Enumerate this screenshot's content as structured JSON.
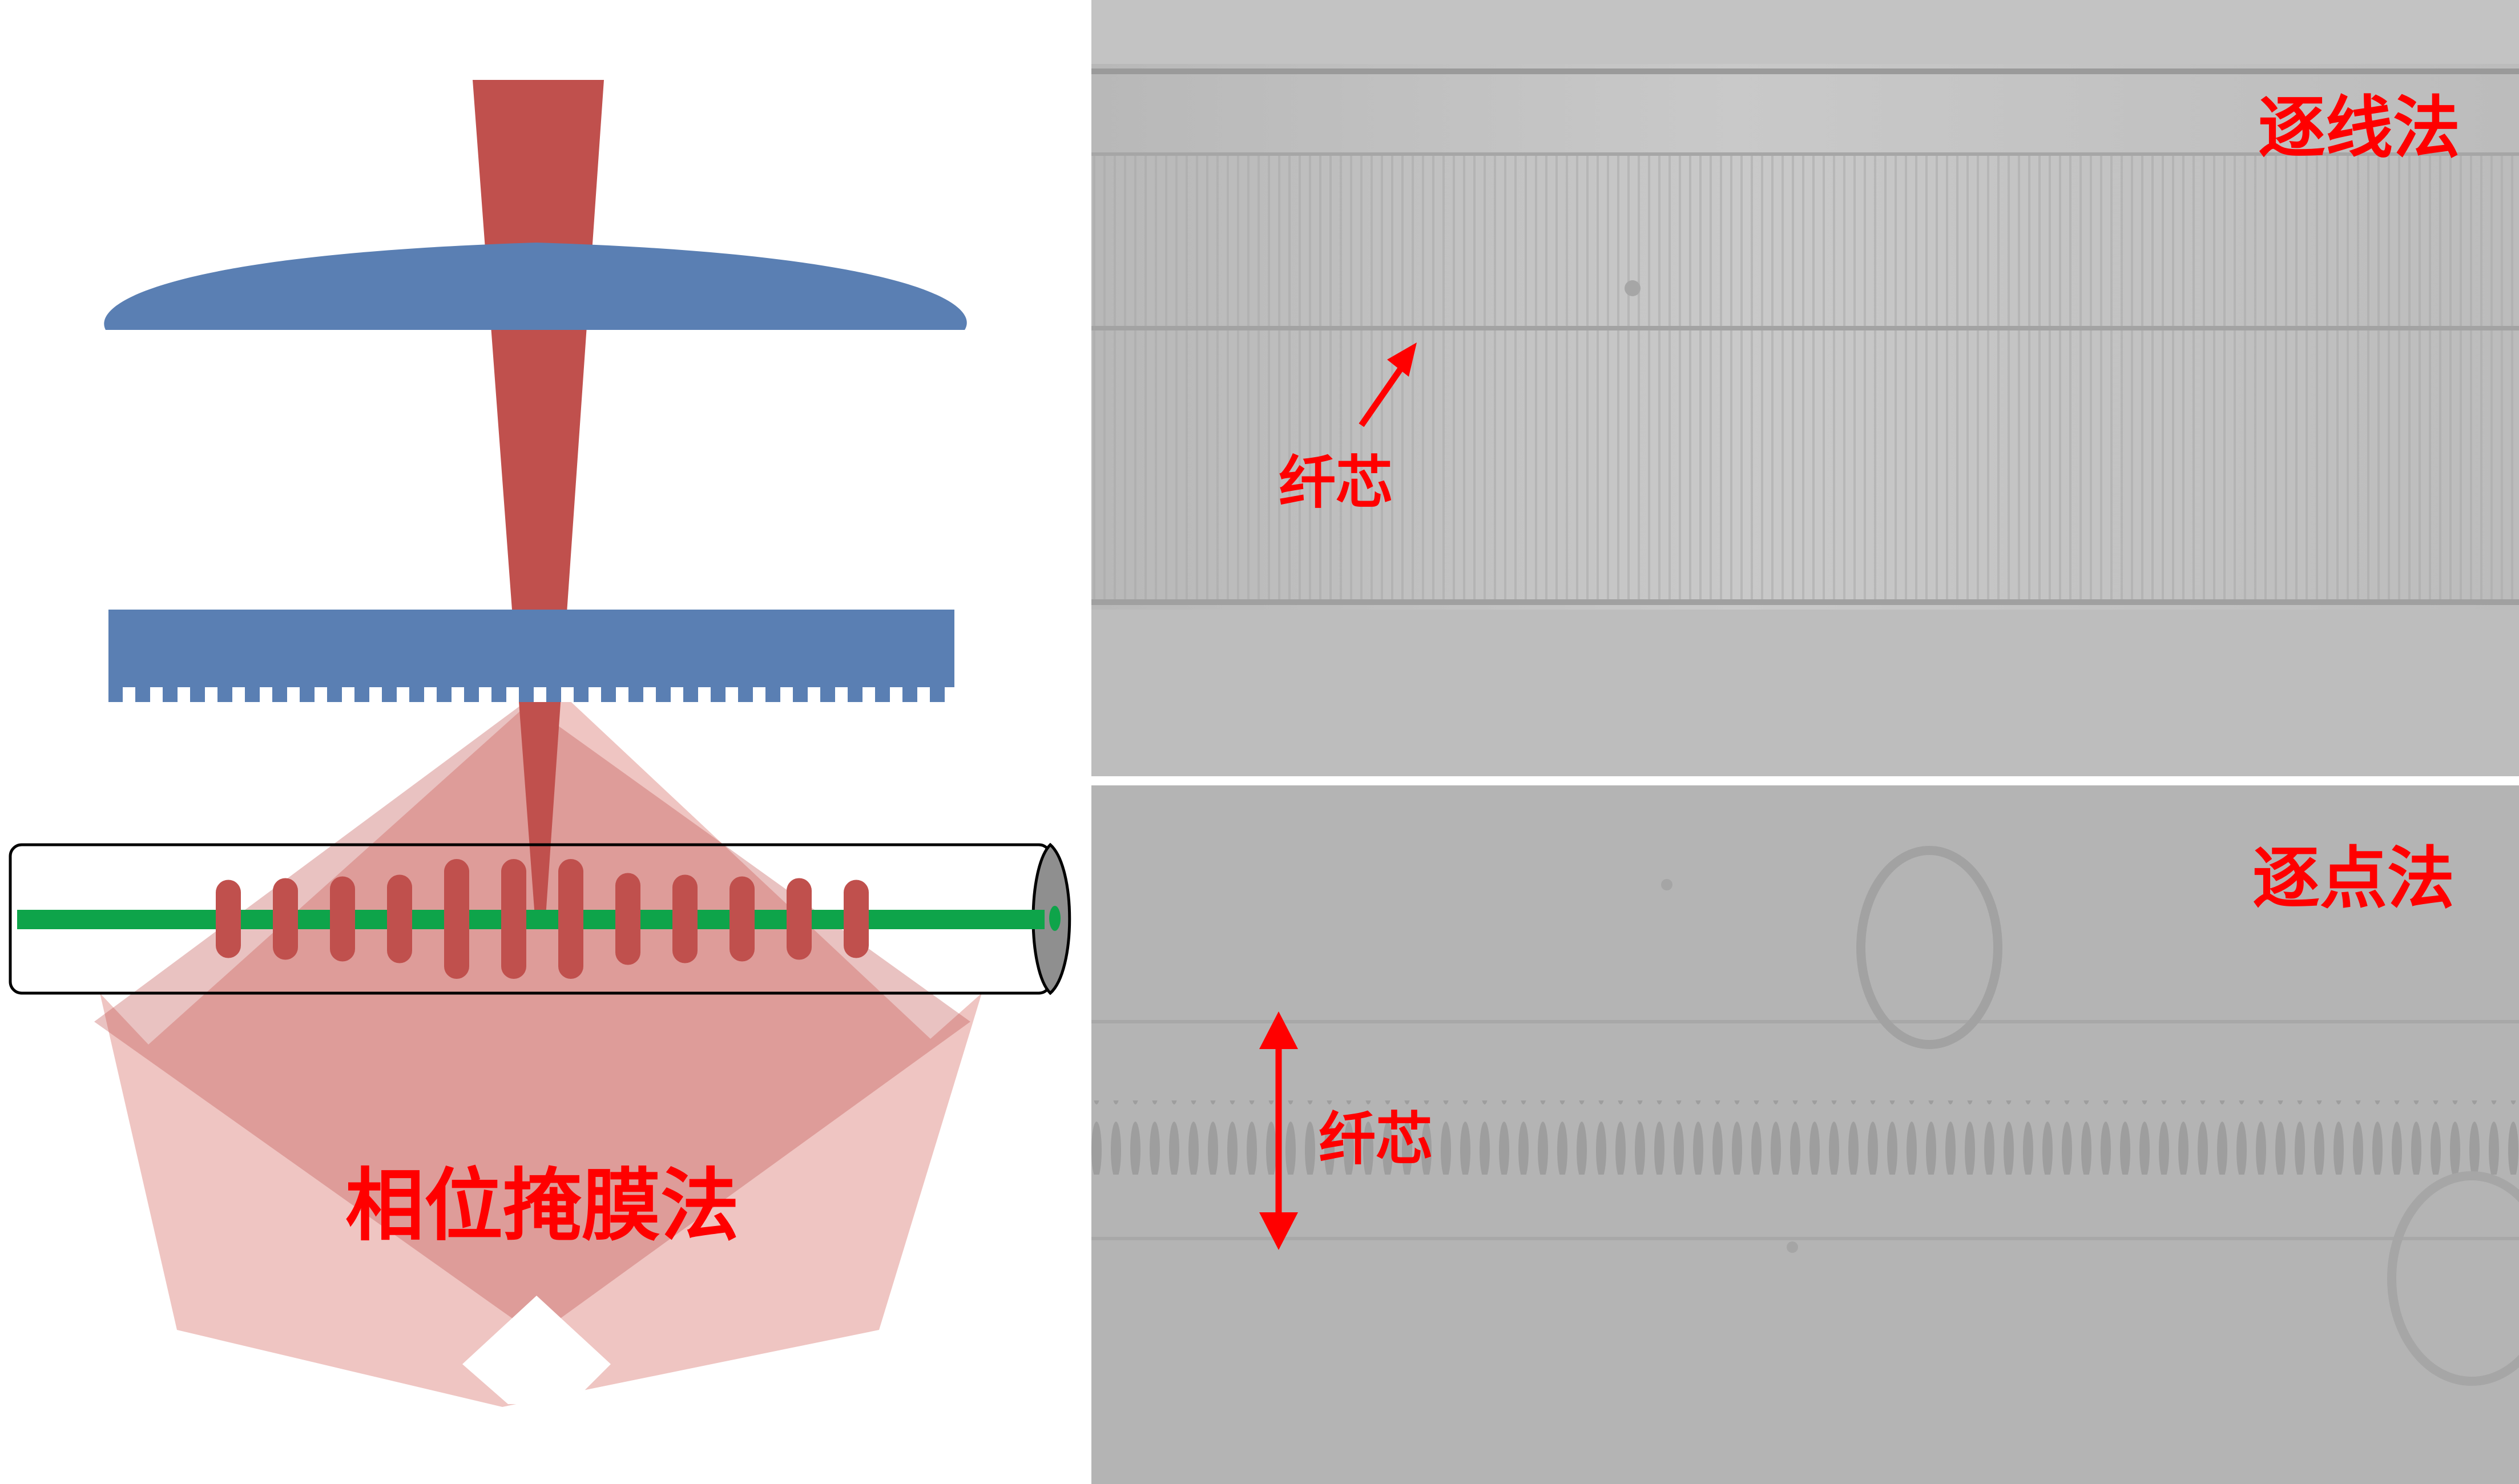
{
  "labels": {
    "phase_mask": "相位掩膜法",
    "line_by_line": "逐线法",
    "point_by_point": "逐点法",
    "core_top": "纤芯",
    "core_bottom": "纤芯"
  },
  "colors": {
    "laser": "#c0504d",
    "optic": "#5a7fb3",
    "fiber_core": "#0ea44a",
    "label": "#ff0000",
    "beam_fan": "#e9b1ae",
    "micrograph_top": "#bdbdbd",
    "micrograph_bottom": "#b4b4b4"
  },
  "icons": {
    "top_arrow": "diagonal-arrow-icon",
    "bottom_arrow": "double-vertical-arrow-icon"
  }
}
